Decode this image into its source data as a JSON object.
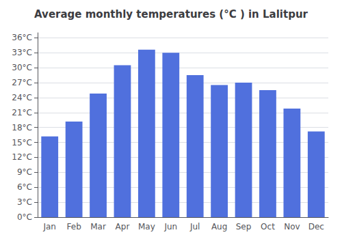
{
  "chart_data": {
    "type": "bar",
    "title": "Average monthly temperatures (°C ) in Lalitpur",
    "categories": [
      "Jan",
      "Feb",
      "Mar",
      "Apr",
      "May",
      "Jun",
      "Jul",
      "Aug",
      "Sep",
      "Oct",
      "Nov",
      "Dec"
    ],
    "values": [
      16.2,
      19.2,
      24.8,
      30.5,
      33.6,
      33.0,
      28.5,
      26.5,
      27.0,
      25.5,
      21.8,
      17.2
    ],
    "ylim": [
      0,
      37
    ],
    "yticks": [
      {
        "value": 0,
        "label": "0°C"
      },
      {
        "value": 3,
        "label": "3°C"
      },
      {
        "value": 6,
        "label": "6°C"
      },
      {
        "value": 9,
        "label": "9°C"
      },
      {
        "value": 12,
        "label": "12°C"
      },
      {
        "value": 15,
        "label": "15°C"
      },
      {
        "value": 18,
        "label": "18°C"
      },
      {
        "value": 21,
        "label": "21°C"
      },
      {
        "value": 24,
        "label": "24°C"
      },
      {
        "value": 27,
        "label": "27°C"
      },
      {
        "value": 30,
        "label": "30°C"
      },
      {
        "value": 33,
        "label": "33°C"
      },
      {
        "value": 36,
        "label": "36°C"
      }
    ],
    "grid": true
  }
}
